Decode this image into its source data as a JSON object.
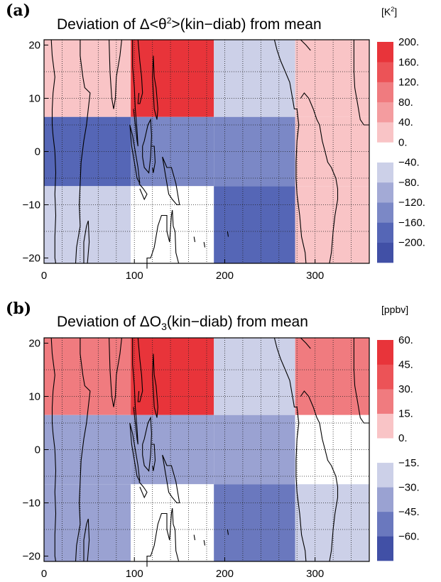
{
  "chart_data": [
    {
      "type": "heatmap",
      "panel_label": "(a)",
      "title": {
        "prefix": "Deviation of  Δ<θ",
        "sup": "2",
        "suffix": ">(kin−diab) from mean"
      },
      "unit": {
        "base": "[K",
        "sup": "2",
        "end": "]"
      },
      "xlim": [
        0,
        360
      ],
      "ylim": [
        -21,
        21
      ],
      "x_ticks": [
        0,
        100,
        200,
        300
      ],
      "x_tick_labels": [
        "0",
        "100",
        "200",
        "300"
      ],
      "y_ticks": [
        -20,
        -10,
        0,
        10,
        20
      ],
      "y_tick_labels": [
        "−20",
        "−10",
        "0",
        "10",
        "20"
      ],
      "x_edges": [
        0,
        96,
        188,
        278,
        360
      ],
      "y_edges": [
        -21,
        -6.5,
        6.5,
        21
      ],
      "grid": true,
      "cells": [
        [
          40,
          200,
          -40,
          40
        ],
        [
          -160,
          -120,
          -120,
          40
        ],
        [
          -40,
          0,
          -160,
          40
        ]
      ],
      "colorbar": {
        "bounds": [
          -220,
          -180,
          -140,
          -100,
          -60,
          -20,
          20,
          60,
          100,
          140,
          180,
          220
        ],
        "colors": [
          "#4150a6",
          "#5566b6",
          "#7b88c6",
          "#a3aad6",
          "#ccd0e8",
          "#ffffff",
          "#f9c4c6",
          "#f49c9f",
          "#f07b7f",
          "#ec5357",
          "#e8343a"
        ],
        "tick_labels": [
          "−200.",
          "−160.",
          "−120.",
          "−80.",
          "−40.",
          "0.",
          "40.",
          "80.",
          "120.",
          "160.",
          "200."
        ]
      }
    },
    {
      "type": "heatmap",
      "panel_label": "(b)",
      "title": {
        "prefix": "Deviation of  ΔO",
        "sub": "3",
        "suffix": "(kin−diab) from mean"
      },
      "unit": {
        "base": "[ppbv",
        "sup": "",
        "end": "]"
      },
      "xlim": [
        0,
        360
      ],
      "ylim": [
        -21,
        21
      ],
      "x_ticks": [
        0,
        100,
        200,
        300
      ],
      "x_tick_labels": [
        "0",
        "100",
        "200",
        "300"
      ],
      "y_ticks": [
        -20,
        -10,
        0,
        10,
        20
      ],
      "y_tick_labels": [
        "−20",
        "−10",
        "0",
        "10",
        "20"
      ],
      "x_edges": [
        0,
        96,
        188,
        278,
        360
      ],
      "y_edges": [
        -21,
        -6.5,
        6.5,
        21
      ],
      "grid": true,
      "cells": [
        [
          30,
          60,
          -15,
          30
        ],
        [
          -30,
          -30,
          -30,
          0
        ],
        [
          -30,
          0,
          -45,
          -15
        ]
      ],
      "colorbar": {
        "bounds": [
          -67.5,
          -52.5,
          -37.5,
          -22.5,
          -7.5,
          7.5,
          22.5,
          37.5,
          52.5,
          67.5
        ],
        "colors": [
          "#4150a6",
          "#6a78be",
          "#9aa2d2",
          "#ccd0e8",
          "#ffffff",
          "#f9c4c6",
          "#f07b7f",
          "#ec5357",
          "#e8343a"
        ],
        "tick_labels": [
          "−60.",
          "−45.",
          "−30.",
          "−15.",
          "0.",
          "15.",
          "30.",
          "45.",
          "60."
        ]
      }
    }
  ]
}
